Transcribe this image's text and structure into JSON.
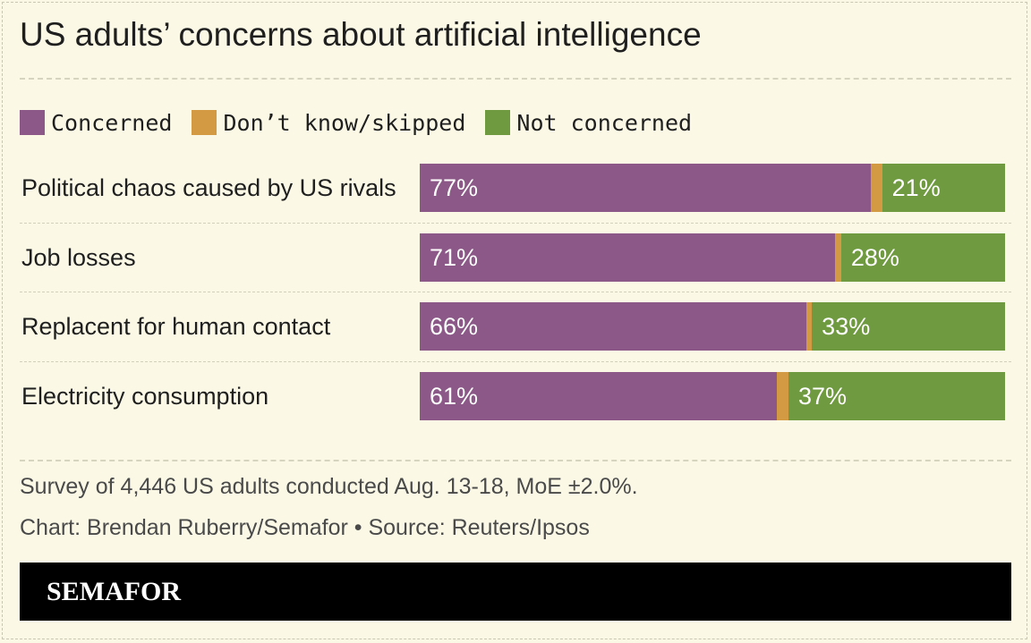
{
  "chart_data": {
    "type": "bar",
    "orientation": "horizontal",
    "stacked": true,
    "title": "US adults’ concerns about artificial intelligence",
    "legend_position": "top-left",
    "series": [
      {
        "name": "Concerned",
        "color": "#8b5887",
        "values": [
          77,
          71,
          66,
          61
        ]
      },
      {
        "name": "Don’t know/skipped",
        "color": "#d39a43",
        "values": [
          2,
          1,
          1,
          2
        ]
      },
      {
        "name": "Not concerned",
        "color": "#6f9a3f",
        "values": [
          21,
          28,
          33,
          37
        ]
      }
    ],
    "categories": [
      "Political chaos caused by US rivals",
      "Job losses",
      "Replacent for human contact",
      "Electricity consumption"
    ],
    "value_labels": [
      [
        "77%",
        "21%"
      ],
      [
        "71%",
        "28%"
      ],
      [
        "66%",
        "33%"
      ],
      [
        "61%",
        "37%"
      ]
    ],
    "xlim": [
      0,
      100
    ]
  },
  "notes": {
    "survey": "Survey of 4,446 US adults conducted Aug. 13-18, MoE ±2.0%.",
    "credit": "Chart: Brendan Ruberry/Semafor • Source: Reuters/Ipsos"
  },
  "footer": {
    "brand": "SEMAFOR"
  }
}
